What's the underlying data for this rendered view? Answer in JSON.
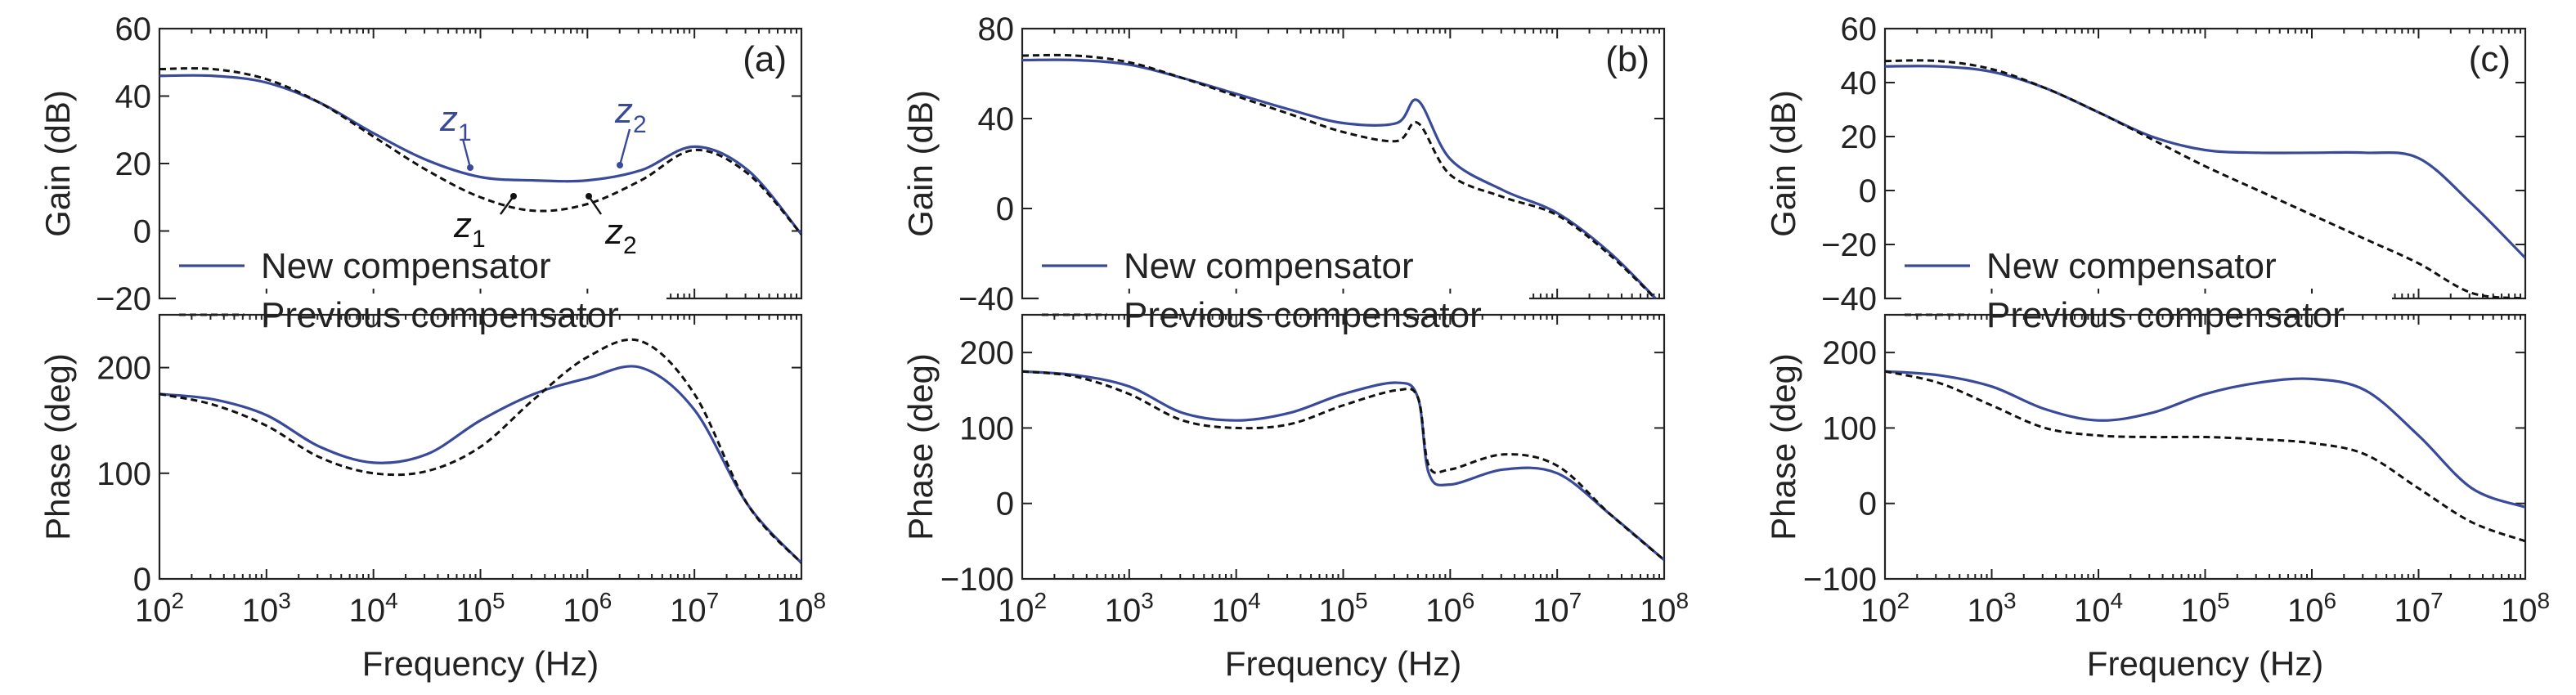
{
  "colors": {
    "new": "#3a4a9a",
    "previous": "#111111",
    "axis": "#222222"
  },
  "legend": {
    "new_label": "New compensator",
    "previous_label": "Previous compensator"
  },
  "xaxis": {
    "label": "Frequency (Hz)",
    "scale": "log",
    "range": [
      100,
      100000000
    ],
    "ticks": [
      {
        "base": "10",
        "exp": "2"
      },
      {
        "base": "10",
        "exp": "3"
      },
      {
        "base": "10",
        "exp": "4"
      },
      {
        "base": "10",
        "exp": "5"
      },
      {
        "base": "10",
        "exp": "6"
      },
      {
        "base": "10",
        "exp": "7"
      },
      {
        "base": "10",
        "exp": "8"
      }
    ]
  },
  "chart_data": [
    {
      "type": "line",
      "panel_label": "(a)",
      "gain": {
        "ylabel": "Gain (dB)",
        "ylim": [
          -20,
          60
        ],
        "yticks": [
          -20,
          0,
          20,
          40,
          60
        ],
        "series": [
          {
            "name": "New compensator",
            "x": [
              100,
              316,
              1000,
              3162,
              10000,
              31623,
              100000,
              316228,
              1000000,
              3162278,
              10000000,
              31622777,
              100000000
            ],
            "y": [
              46,
              46,
              44,
              38,
              29,
              21,
              16,
              15,
              15,
              18,
              25,
              18,
              -1
            ]
          },
          {
            "name": "Previous compensator",
            "x": [
              100,
              316,
              1000,
              3162,
              10000,
              31623,
              100000,
              316228,
              1000000,
              3162278,
              10000000,
              31622777,
              100000000
            ],
            "y": [
              48,
              48,
              45,
              38,
              28,
              18,
              10,
              6,
              8,
              15,
              24,
              17,
              -1
            ]
          }
        ],
        "annotations": [
          {
            "base": "z",
            "sub": "1",
            "color": "new"
          },
          {
            "base": "z",
            "sub": "2",
            "color": "new"
          },
          {
            "base": "z",
            "sub": "1",
            "color": "previous"
          },
          {
            "base": "z",
            "sub": "2",
            "color": "previous"
          }
        ]
      },
      "phase": {
        "ylabel": "Phase (deg)",
        "ylim": [
          0,
          250
        ],
        "yticks": [
          0,
          100,
          200
        ],
        "series": [
          {
            "name": "New compensator",
            "x": [
              100,
              316,
              1000,
              3162,
              10000,
              31623,
              100000,
              316228,
              1000000,
              3162278,
              10000000,
              31622777,
              100000000
            ],
            "y": [
              175,
              170,
              155,
              125,
              110,
              118,
              150,
              175,
              190,
              200,
              160,
              70,
              15
            ]
          },
          {
            "name": "Previous compensator",
            "x": [
              100,
              316,
              1000,
              3162,
              10000,
              31623,
              100000,
              316228,
              1000000,
              3162278,
              10000000,
              31622777,
              100000000
            ],
            "y": [
              175,
              165,
              145,
              115,
              100,
              102,
              125,
              170,
              210,
              225,
              175,
              70,
              15
            ]
          }
        ]
      }
    },
    {
      "type": "line",
      "panel_label": "(b)",
      "gain": {
        "ylabel": "Gain (dB)",
        "ylim": [
          -40,
          80
        ],
        "yticks": [
          -40,
          0,
          40,
          80
        ],
        "series": [
          {
            "name": "New compensator",
            "x": [
              100,
              316,
              1000,
              3162,
              10000,
              31623,
              100000,
              316228,
              500000,
              1000000,
              3162278,
              10000000,
              31622777,
              100000000
            ],
            "y": [
              66,
              66,
              64,
              58,
              51,
              44,
              38,
              38,
              48,
              22,
              8,
              -2,
              -20,
              -44
            ]
          },
          {
            "name": "Previous compensator",
            "x": [
              100,
              316,
              1000,
              3162,
              10000,
              31623,
              100000,
              316228,
              500000,
              1000000,
              3162278,
              10000000,
              31622777,
              100000000
            ],
            "y": [
              68,
              68,
              65,
              58,
              50,
              42,
              34,
              30,
              38,
              15,
              5,
              -3,
              -21,
              -44
            ]
          }
        ]
      },
      "phase": {
        "ylabel": "Phase (deg)",
        "ylim": [
          -100,
          250
        ],
        "yticks": [
          -100,
          0,
          100,
          200
        ],
        "series": [
          {
            "name": "New compensator",
            "x": [
              100,
              316,
              1000,
              3162,
              10000,
              31623,
              100000,
              316228,
              500000,
              631000,
              1000000,
              3162278,
              10000000,
              31622777,
              100000000
            ],
            "y": [
              175,
              170,
              155,
              120,
              110,
              120,
              145,
              160,
              140,
              40,
              25,
              45,
              40,
              -15,
              -75
            ]
          },
          {
            "name": "Previous compensator",
            "x": [
              100,
              316,
              1000,
              3162,
              10000,
              31623,
              100000,
              316228,
              500000,
              631000,
              1000000,
              3162278,
              10000000,
              31622777,
              100000000
            ],
            "y": [
              175,
              168,
              145,
              110,
              100,
              105,
              130,
              150,
              140,
              50,
              45,
              65,
              50,
              -15,
              -75
            ]
          }
        ]
      }
    },
    {
      "type": "line",
      "panel_label": "(c)",
      "gain": {
        "ylabel": "Gain (dB)",
        "ylim": [
          -40,
          60
        ],
        "yticks": [
          -40,
          -20,
          0,
          20,
          40,
          60
        ],
        "series": [
          {
            "name": "New compensator",
            "x": [
              100,
              316,
              1000,
              3162,
              10000,
              31623,
              100000,
              316228,
              1000000,
              3162278,
              10000000,
              31622777,
              100000000
            ],
            "y": [
              46,
              46,
              44,
              38,
              29,
              20,
              15,
              14,
              14,
              14,
              12,
              -5,
              -25
            ]
          },
          {
            "name": "Previous compensator",
            "x": [
              100,
              316,
              1000,
              3162,
              10000,
              31623,
              100000,
              316228,
              1000000,
              3162278,
              10000000,
              31622777,
              100000000
            ],
            "y": [
              48,
              48,
              45,
              38,
              29,
              19,
              9,
              0,
              -9,
              -18,
              -27,
              -38,
              -40
            ]
          }
        ]
      },
      "phase": {
        "ylabel": "Phase (deg)",
        "ylim": [
          -100,
          250
        ],
        "yticks": [
          -100,
          0,
          100,
          200
        ],
        "series": [
          {
            "name": "New compensator",
            "x": [
              100,
              316,
              1000,
              3162,
              10000,
              31623,
              100000,
              316228,
              1000000,
              3162278,
              10000000,
              31622777,
              100000000
            ],
            "y": [
              175,
              170,
              155,
              125,
              110,
              120,
              145,
              160,
              165,
              150,
              90,
              20,
              -5
            ]
          },
          {
            "name": "Previous compensator",
            "x": [
              100,
              316,
              1000,
              3162,
              10000,
              31623,
              100000,
              316228,
              1000000,
              3162278,
              10000000,
              31622777,
              100000000
            ],
            "y": [
              175,
              160,
              130,
              100,
              90,
              88,
              88,
              85,
              80,
              65,
              20,
              -25,
              -50
            ]
          }
        ]
      }
    }
  ]
}
